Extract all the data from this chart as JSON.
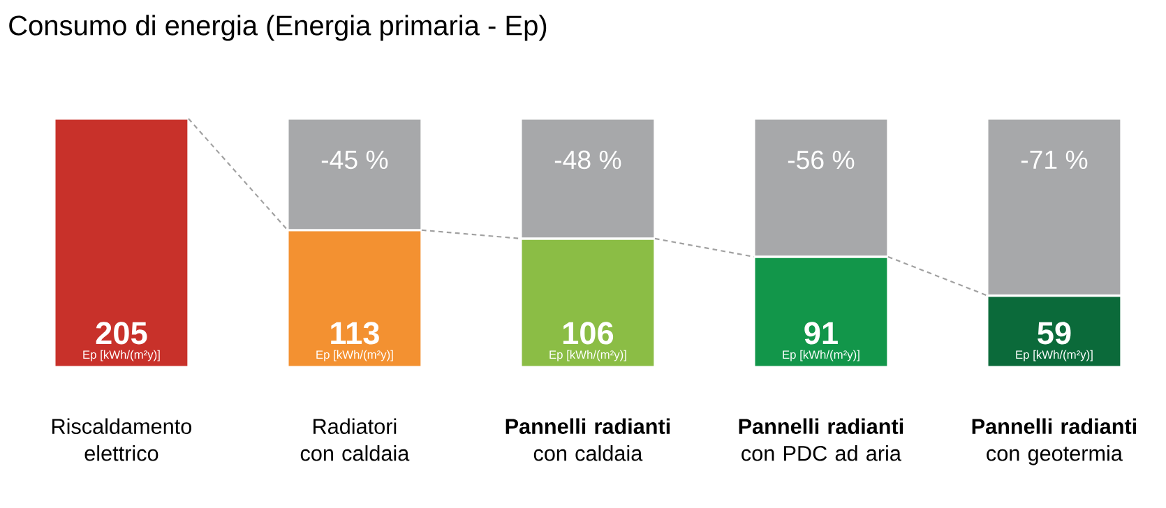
{
  "chart_data": {
    "type": "bar",
    "stacked": true,
    "title": "Consumo di energia (Energia primaria - Ep)",
    "categories": [
      "Riscaldamento elettrico",
      "Radiatori con caldaia",
      "**Pannelli radianti** con caldaia",
      "**Pannelli radianti** con PDC ad aria",
      "**Pannelli radianti** con geotermia"
    ],
    "series": [
      {
        "colors": [
          "#c8312a",
          "#f39131",
          "#8bbd45",
          "#12964a",
          "#0b6a3a"
        ],
        "values": [
          205,
          113,
          106,
          91,
          59
        ],
        "value_labels": [
          "205",
          "113",
          "106",
          "91",
          "59"
        ]
      },
      {
        "color": "#a7a8aa",
        "values": [
          null,
          92,
          99,
          114,
          146
        ]
      }
    ],
    "annotations": [
      {
        "text": "Ep [kWh/(m²y)]",
        "x": "Riscaldamento elettrico",
        "y": 0
      },
      {
        "text": "Ep [kWh/(m²y)]",
        "x": "Radiatori con caldaia",
        "y": 0
      },
      {
        "text": "Ep [kWh/(m²y)]",
        "x": "**Pannelli radianti** con caldaia",
        "y": 0
      },
      {
        "text": "Ep [kWh/(m²y)]",
        "x": "**Pannelli radianti** con PDC ad aria",
        "y": 0
      },
      {
        "text": "Ep [kWh/(m²y)]",
        "x": "**Pannelli radianti** con geotermia",
        "y": 0
      },
      {
        "text": "-45 %",
        "x": "Radiatori con caldaia",
        "y": 205
      },
      {
        "text": "-48 %",
        "x": "**Pannelli radianti** con caldaia",
        "y": 205
      },
      {
        "text": "-56 %",
        "x": "**Pannelli radianti** con PDC ad aria",
        "y": 205
      },
      {
        "text": "-71 %",
        "x": "**Pannelli radianti** con geotermia",
        "y": 205
      }
    ]
  }
}
